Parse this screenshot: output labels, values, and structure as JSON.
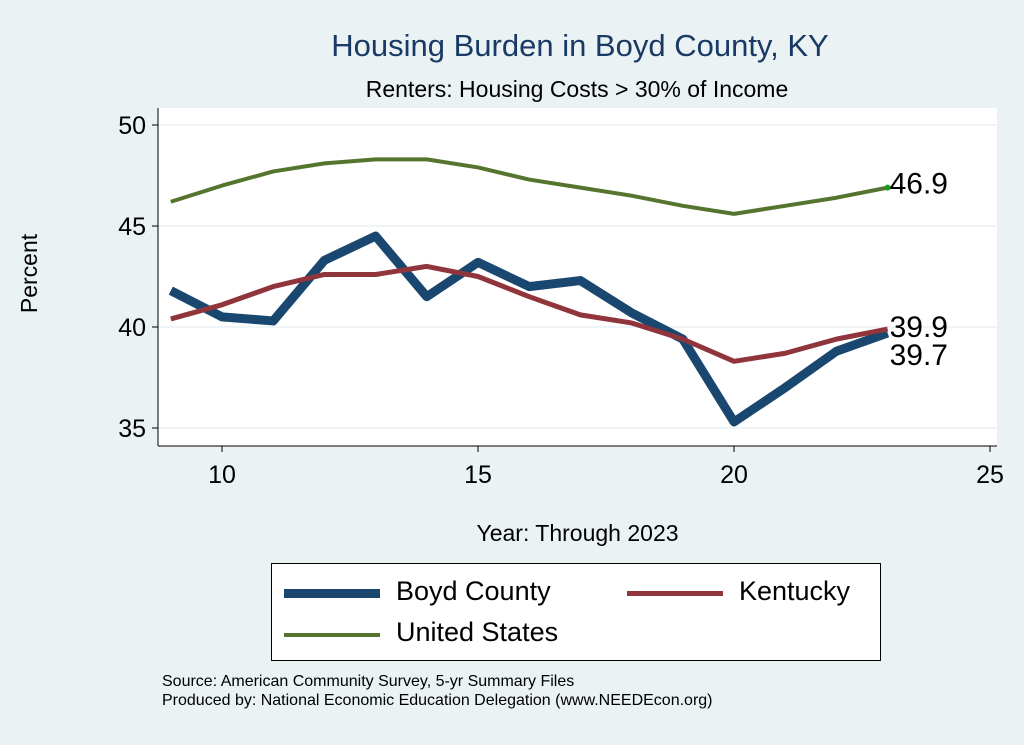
{
  "chart_data": {
    "type": "line",
    "title": "Housing Burden in Boyd County, KY",
    "subtitle": "Renters: Housing Costs > 30% of Income",
    "xlabel": "Year: Through 2023",
    "ylabel": "Percent",
    "xlim": [
      8.3,
      25.3
    ],
    "ylim": [
      34,
      51
    ],
    "xticks": [
      10,
      15,
      20,
      25
    ],
    "yticks": [
      35,
      40,
      45,
      50
    ],
    "grid": true,
    "legend_position": "bottom",
    "x": [
      9,
      10,
      11,
      12,
      13,
      14,
      15,
      16,
      17,
      18,
      19,
      20,
      21,
      22,
      23
    ],
    "series": [
      {
        "name": "Boyd County",
        "color": "#1a476f",
        "width": 9,
        "end_label": "39.7",
        "values": [
          41.8,
          40.5,
          40.3,
          43.3,
          44.5,
          41.5,
          43.2,
          42.0,
          42.3,
          40.7,
          39.4,
          35.3,
          37.0,
          38.8,
          39.7
        ]
      },
      {
        "name": "Kentucky",
        "color": "#90353b",
        "width": 5,
        "end_label": "39.9",
        "values": [
          40.4,
          41.1,
          42.0,
          42.6,
          42.6,
          43.0,
          42.5,
          41.5,
          40.6,
          40.2,
          39.4,
          38.3,
          38.7,
          39.4,
          39.9
        ]
      },
      {
        "name": "United States",
        "color": "#55752f",
        "width": 4,
        "end_label": "46.9",
        "values": [
          46.2,
          47.0,
          47.7,
          48.1,
          48.3,
          48.3,
          47.9,
          47.3,
          46.9,
          46.5,
          46.0,
          45.6,
          46.0,
          46.4,
          46.9
        ]
      }
    ]
  },
  "source": {
    "line1": "Source: American Community Survey, 5-yr Summary Files",
    "line2": "Produced by: National Economic Education Delegation (www.NEEDEcon.org)"
  }
}
